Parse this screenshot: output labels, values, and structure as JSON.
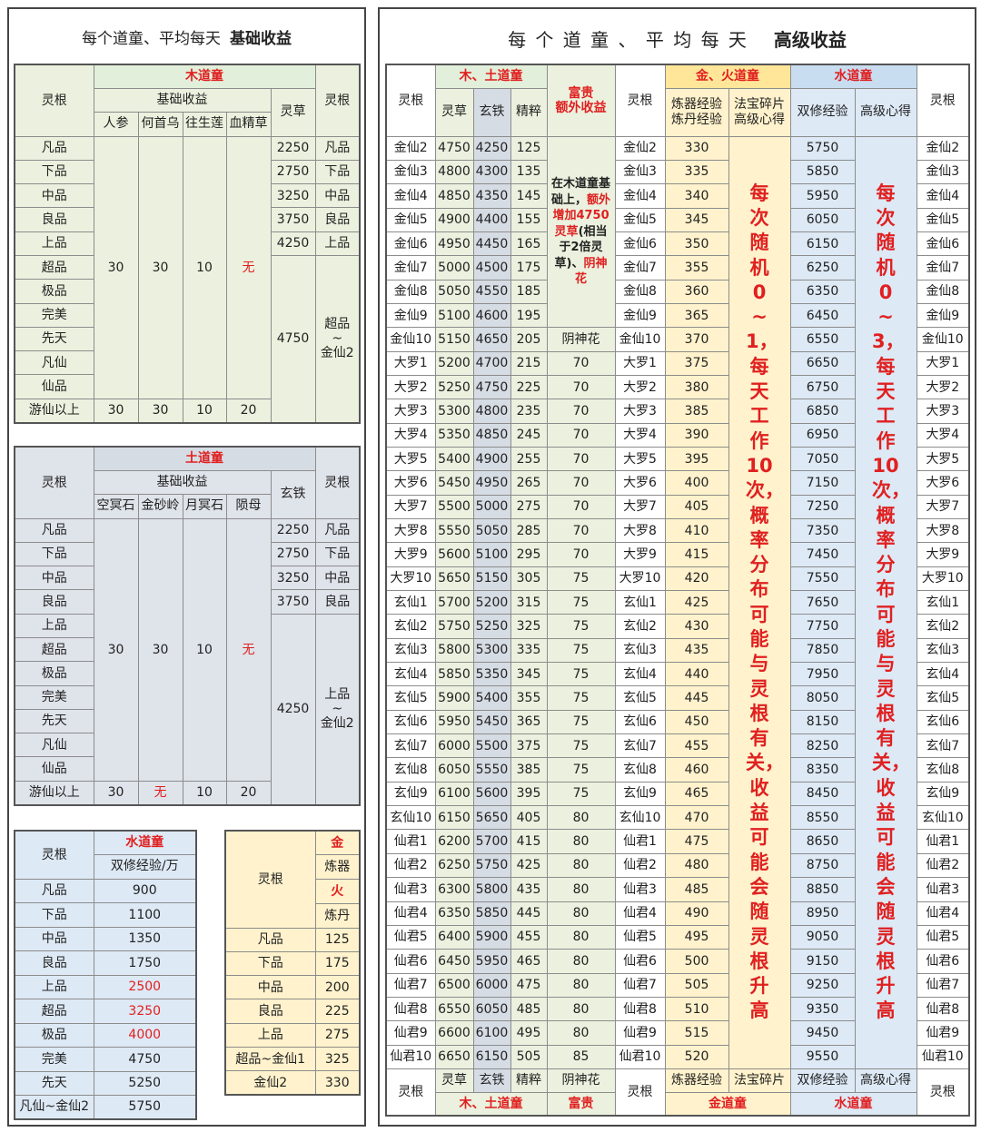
{
  "basic": {
    "title": "每个道童、平均每天",
    "title_bold": "基础收益",
    "wood": {
      "name": "木道童",
      "root": "灵根",
      "base": "基础收益",
      "items": [
        "人参",
        "何首乌",
        "往生莲",
        "血精草"
      ],
      "res": "灵草",
      "root_r": "灵根",
      "grades": [
        "凡品",
        "下品",
        "中品",
        "良品",
        "上品",
        "超品",
        "极品",
        "完美",
        "先天",
        "凡仙",
        "仙品"
      ],
      "values": [
        30,
        30,
        10,
        "无"
      ],
      "top": "游仙以上",
      "top_values": [
        30,
        30,
        10,
        20
      ],
      "res_values": [
        2250,
        2750,
        3250,
        3750,
        4250,
        4750
      ],
      "roots_r": [
        "凡品",
        "下品",
        "中品",
        "良品",
        "上品",
        [
          "超品",
          "~",
          "金仙2"
        ]
      ]
    },
    "earth": {
      "name": "土道童",
      "root": "灵根",
      "base": "基础收益",
      "items": [
        "空冥石",
        "金砂岭",
        "月冥石",
        "陨母"
      ],
      "res": "玄铁",
      "root_r": "灵根",
      "grades": [
        "凡品",
        "下品",
        "中品",
        "良品",
        "上品",
        "超品",
        "极品",
        "完美",
        "先天",
        "凡仙",
        "仙品"
      ],
      "values": [
        30,
        30,
        10,
        "无"
      ],
      "top": "游仙以上",
      "top_values": [
        30,
        "无",
        10,
        20
      ],
      "res_values": [
        2250,
        2750,
        3250,
        3750,
        4250
      ],
      "roots_r": [
        "凡品",
        "下品",
        "中品",
        "良品",
        [
          "上品",
          "~",
          "金仙2"
        ]
      ]
    },
    "water": {
      "root": "灵根",
      "name": "水道童",
      "unit": "双修经验/万",
      "grades": [
        "凡品",
        "下品",
        "中品",
        "良品",
        "上品",
        "超品",
        "极品",
        "完美",
        "先天",
        "凡仙~金仙2"
      ],
      "values": [
        900,
        1100,
        1350,
        1750,
        2500,
        3250,
        4000,
        4750,
        5250,
        5750
      ]
    },
    "fire": {
      "root": "灵根",
      "head": [
        "金",
        "炼器",
        "火",
        "炼丹"
      ],
      "grades": [
        "凡品",
        "下品",
        "中品",
        "良品",
        "上品",
        "超品~金仙1",
        "金仙2"
      ],
      "values": [
        125,
        175,
        200,
        225,
        275,
        325,
        330
      ]
    }
  },
  "advanced": {
    "title": "每 个 道 童 、 平 均 每 天",
    "title_bold": "高级收益",
    "head": {
      "root": "灵根",
      "wood_earth": "木、土道童",
      "grass": "灵草",
      "iron": "玄铁",
      "essence": "精粹",
      "fugui": [
        "富贵",
        "额外收益"
      ],
      "metal_fire": "金、火道童",
      "refine": [
        "炼器经验",
        "炼丹经验"
      ],
      "shard": [
        "法宝碎片",
        "高级心得"
      ],
      "water": "水道童",
      "dual": "双修经验",
      "heart": "高级心得"
    },
    "roots": [
      "金仙2",
      "金仙3",
      "金仙4",
      "金仙5",
      "金仙6",
      "金仙7",
      "金仙8",
      "金仙9",
      "金仙10",
      "大罗1",
      "大罗2",
      "大罗3",
      "大罗4",
      "大罗5",
      "大罗6",
      "大罗7",
      "大罗8",
      "大罗9",
      "大罗10",
      "玄仙1",
      "玄仙2",
      "玄仙3",
      "玄仙4",
      "玄仙5",
      "玄仙6",
      "玄仙7",
      "玄仙8",
      "玄仙9",
      "玄仙10",
      "仙君1",
      "仙君2",
      "仙君3",
      "仙君4",
      "仙君5",
      "仙君6",
      "仙君7",
      "仙君8",
      "仙君9",
      "仙君10"
    ],
    "grass": [
      4750,
      4800,
      4850,
      4900,
      4950,
      5000,
      5050,
      5100,
      5150,
      5200,
      5250,
      5300,
      5350,
      5400,
      5450,
      5500,
      5550,
      5600,
      5650,
      5700,
      5750,
      5800,
      5850,
      5900,
      5950,
      6000,
      6050,
      6100,
      6150,
      6200,
      6250,
      6300,
      6350,
      6400,
      6450,
      6500,
      6550,
      6600,
      6650
    ],
    "iron": [
      4250,
      4300,
      4350,
      4400,
      4450,
      4500,
      4550,
      4600,
      4650,
      4700,
      4750,
      4800,
      4850,
      4900,
      4950,
      5000,
      5050,
      5100,
      5150,
      5200,
      5250,
      5300,
      5350,
      5400,
      5450,
      5500,
      5550,
      5600,
      5650,
      5700,
      5750,
      5800,
      5850,
      5900,
      5950,
      6000,
      6050,
      6100,
      6150
    ],
    "essence": [
      125,
      135,
      145,
      155,
      165,
      175,
      185,
      195,
      205,
      215,
      225,
      235,
      245,
      255,
      265,
      275,
      285,
      295,
      305,
      315,
      325,
      335,
      345,
      355,
      365,
      375,
      385,
      395,
      405,
      415,
      425,
      435,
      445,
      455,
      465,
      475,
      485,
      495,
      505
    ],
    "fugui_note": [
      "在木道童基础上，",
      "额外增加4750灵草",
      "(相当于2倍灵草)",
      "、",
      "阴神花"
    ],
    "fugui": [
      "阴神花",
      70,
      70,
      70,
      70,
      70,
      70,
      70,
      70,
      70,
      75,
      75,
      75,
      75,
      75,
      75,
      75,
      75,
      75,
      75,
      80,
      80,
      80,
      80,
      80,
      80,
      80,
      80,
      80,
      80,
      85
    ],
    "refine": [
      330,
      335,
      340,
      345,
      350,
      355,
      360,
      365,
      370,
      375,
      380,
      385,
      390,
      395,
      400,
      405,
      410,
      415,
      420,
      425,
      430,
      435,
      440,
      445,
      450,
      455,
      460,
      465,
      470,
      475,
      480,
      485,
      490,
      495,
      500,
      505,
      510,
      515,
      520
    ],
    "shard_note": "每次随机0~1，每天工作10次，概率分布可能与灵根有关，收益可能会随灵根升高",
    "dual": [
      5750,
      5850,
      5950,
      6050,
      6150,
      6250,
      6350,
      6450,
      6550,
      6650,
      6750,
      6850,
      6950,
      7050,
      7150,
      7250,
      7350,
      7450,
      7550,
      7650,
      7750,
      7850,
      7950,
      8050,
      8150,
      8250,
      8350,
      8450,
      8550,
      8650,
      8750,
      8850,
      8950,
      9050,
      9150,
      9250,
      9350,
      9450,
      9550
    ],
    "heart_note": "每次随机0~3，每天工作10次，概率分布可能与灵根有关，收益可能会随灵根升高",
    "foot": {
      "root": "灵根",
      "grass": "灵草",
      "iron": "玄铁",
      "essence": "精粹",
      "wood_earth": "木、土道童",
      "flower": "阴神花",
      "fugui": "富贵",
      "refine": "炼器经验",
      "shard": "法宝碎片",
      "metal": "金道童",
      "dual": "双修经验",
      "heart": "高级心得",
      "water": "水道童"
    }
  }
}
